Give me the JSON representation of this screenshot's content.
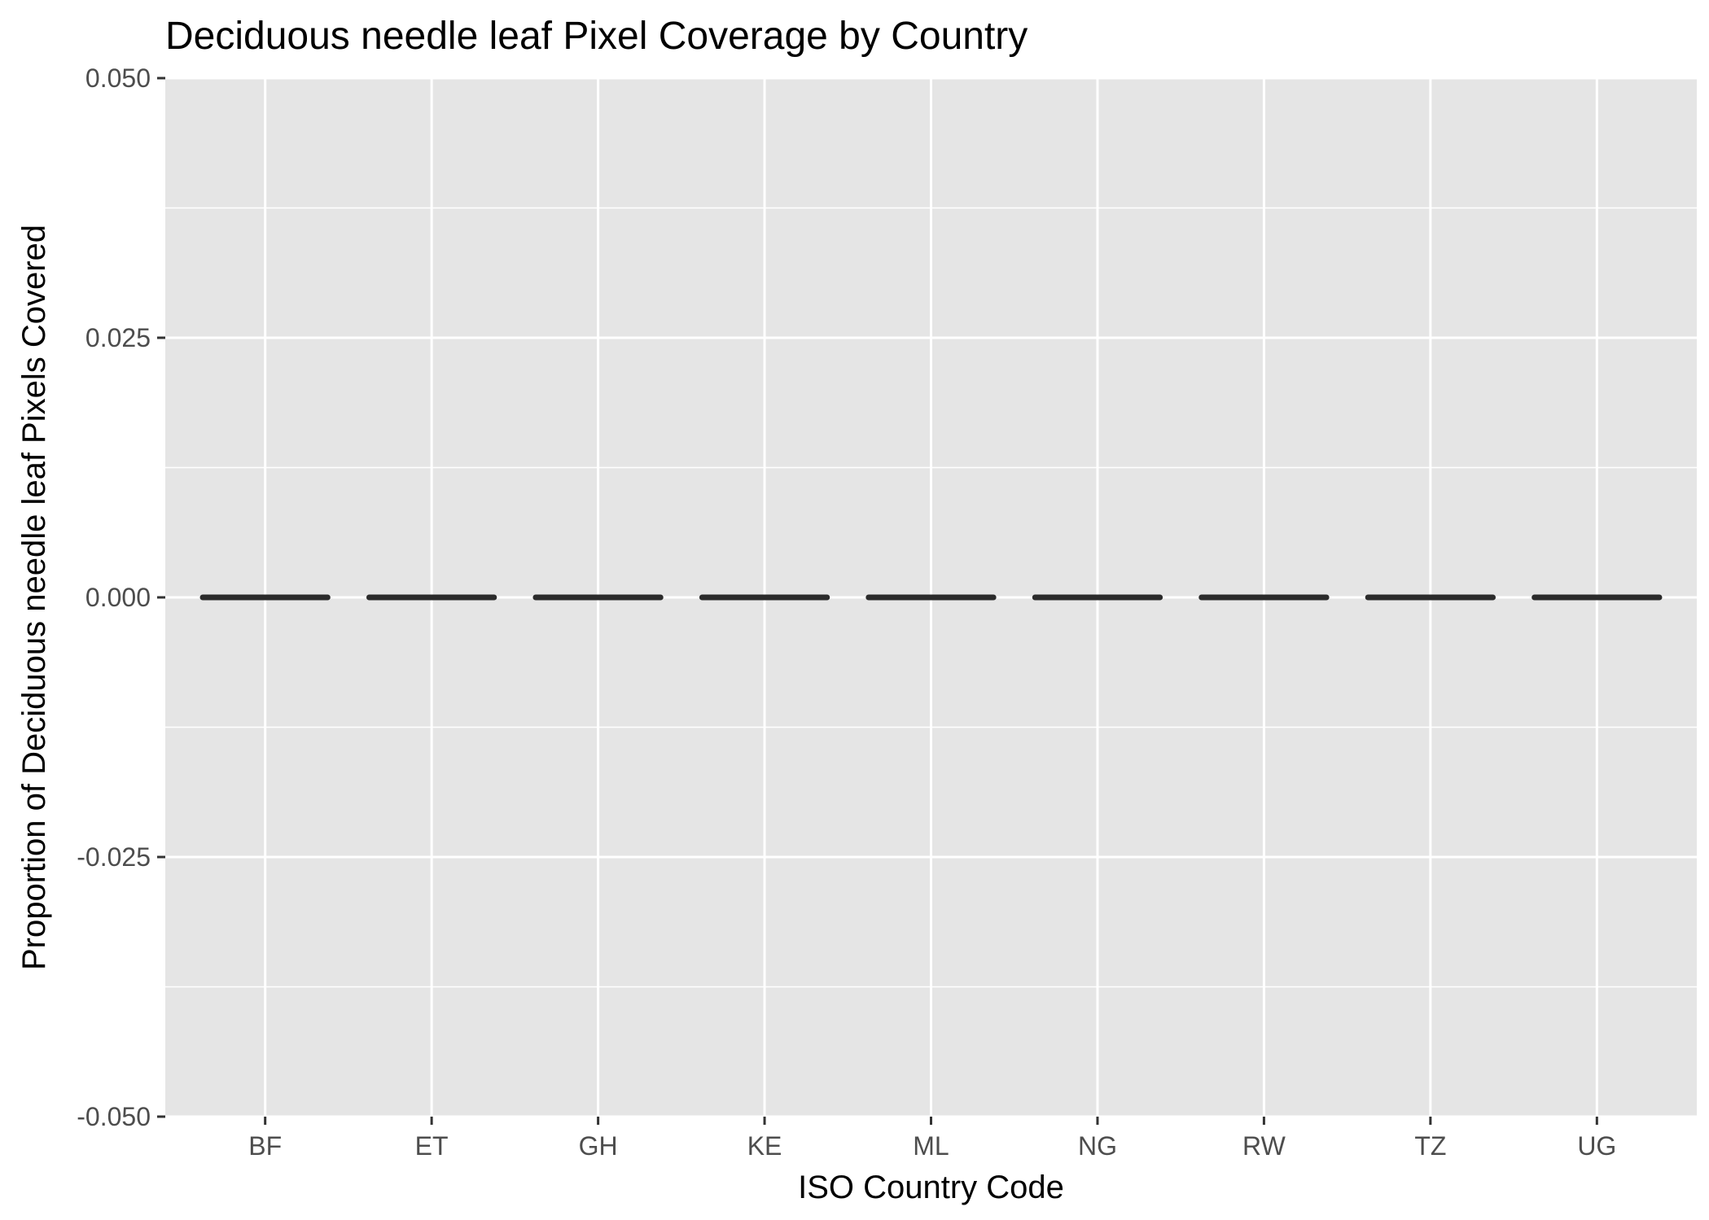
{
  "chart_data": {
    "type": "boxplot",
    "title": "Deciduous needle leaf Pixel Coverage by Country",
    "xlabel": "ISO Country Code",
    "ylabel": "Proportion of Deciduous needle leaf Pixels Covered",
    "categories": [
      "BF",
      "ET",
      "GH",
      "KE",
      "ML",
      "NG",
      "RW",
      "TZ",
      "UG"
    ],
    "values": [
      0,
      0,
      0,
      0,
      0,
      0,
      0,
      0,
      0
    ],
    "ylim": [
      -0.05,
      0.05
    ],
    "y_ticks": [
      -0.05,
      -0.025,
      0,
      0.025,
      0.05
    ],
    "y_tick_labels": [
      "-0.050",
      "-0.025",
      "0.000",
      "0.025",
      "0.050"
    ],
    "grid": true,
    "legend": "none",
    "colors": {
      "panel_background": "#e5e5e5",
      "grid_line": "#ffffff",
      "box_line": "#2b2b2b",
      "tick_text": "#4d4d4d",
      "tick_mark": "#333333"
    }
  }
}
